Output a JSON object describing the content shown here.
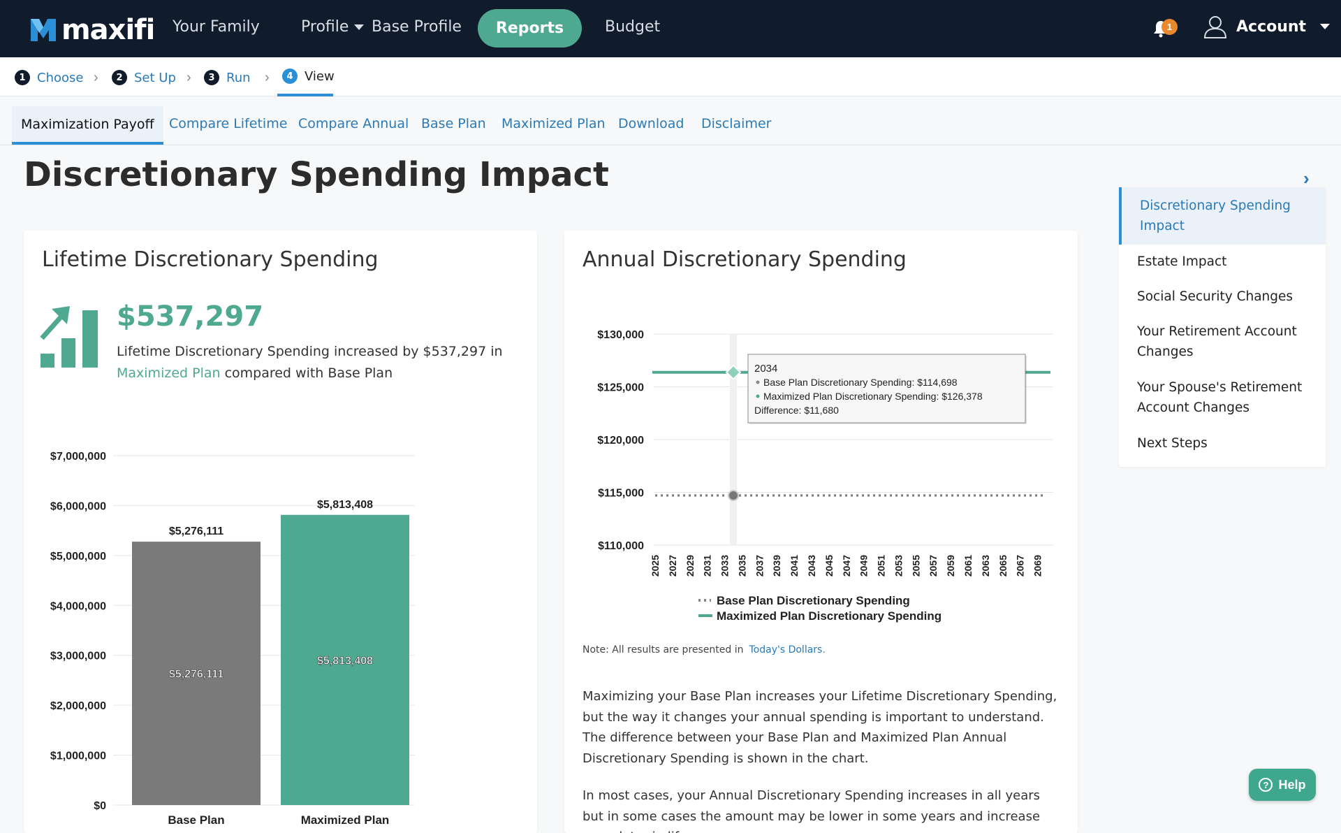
{
  "nav": {
    "logo": "maxifi",
    "items": [
      "Your Family",
      "Profile",
      "Base Profile",
      "Reports",
      "Budget"
    ],
    "notification_count": "1",
    "account_label": "Account"
  },
  "steps": [
    {
      "num": "1",
      "label": "Choose"
    },
    {
      "num": "2",
      "label": "Set Up"
    },
    {
      "num": "3",
      "label": "Run"
    },
    {
      "num": "4",
      "label": "View"
    }
  ],
  "tabs": [
    "Maximization Payoff",
    "Compare Lifetime",
    "Compare Annual",
    "Base Plan",
    "Maximized Plan",
    "Download",
    "Disclaimer"
  ],
  "page_title": "Discretionary Spending Impact",
  "lifetime": {
    "title": "Lifetime Discretionary Spending",
    "amount": "$537,297",
    "text_1": "Lifetime Discretionary Spending increased by $537,297 in",
    "text_maximized": "Maximized Plan",
    "text_2": " compared with ",
    "text_base": "Base Plan"
  },
  "annual": {
    "title": "Annual Discretionary Spending",
    "note": "Note: All results are presented in",
    "note_link": "Today's Dollars.",
    "para_1": "Maximizing your Base Plan increases your Lifetime Discretionary Spending, but the way it changes your annual spending is important to understand. The difference between your Base Plan and Maximized Plan Annual Discretionary Spending is shown in the chart.",
    "para_2": "In most cases, your Annual Discretionary Spending increases in all years but in some cases the amount may be lower in some years and increase more later in life"
  },
  "side_nav": {
    "items": [
      "Discretionary Spending Impact",
      "Estate Impact",
      "Social Security Changes",
      "Your Retirement Account Changes",
      "Your Spouse's Retirement Account Changes",
      "Next Steps"
    ]
  },
  "help_label": "Help",
  "colors": {
    "teal": "#4fa890",
    "gray_bar": "#7a7a7a",
    "navy": "#101b2b",
    "link": "#2a7ab8"
  },
  "chart_data": [
    {
      "type": "bar",
      "categories": [
        "Base Plan",
        "Maximized Plan"
      ],
      "values": [
        5276111,
        5813408
      ],
      "value_labels": [
        "$5,276,111",
        "$5,813,408"
      ],
      "ylim": [
        0,
        7000000
      ],
      "y_ticks": [
        0,
        1000000,
        2000000,
        3000000,
        4000000,
        5000000,
        6000000,
        7000000
      ],
      "y_tick_labels": [
        "$0",
        "$1,000,000",
        "$2,000,000",
        "$3,000,000",
        "$4,000,000",
        "$5,000,000",
        "$6,000,000",
        "$7,000,000"
      ],
      "colors": [
        "#7a7a7a",
        "#4fa890"
      ]
    },
    {
      "type": "line",
      "x_range": [
        2025,
        2070
      ],
      "x_tick_labels": [
        "2025",
        "2027",
        "2029",
        "2031",
        "2033",
        "2035",
        "2037",
        "2039",
        "2041",
        "2043",
        "2045",
        "2047",
        "2049",
        "2051",
        "2053",
        "2055",
        "2057",
        "2059",
        "2061",
        "2063",
        "2065",
        "2067",
        "2069"
      ],
      "ylim": [
        110000,
        130000
      ],
      "y_ticks": [
        110000,
        115000,
        120000,
        125000,
        130000
      ],
      "y_tick_labels": [
        "$110,000",
        "$115,000",
        "$120,000",
        "$125,000",
        "$130,000"
      ],
      "series": [
        {
          "name": "Base Plan Discretionary Spending",
          "value": 114698,
          "style": "dotted",
          "color": "#888888"
        },
        {
          "name": "Maximized Plan Discretionary Spending",
          "value": 126378,
          "style": "solid",
          "color": "#4fa890"
        }
      ],
      "tooltip": {
        "year": "2034",
        "line_1": "Base Plan Discretionary Spending: $114,698",
        "line_2": "Maximized Plan Discretionary Spending: $126,378",
        "line_3": "Difference: $11,680"
      },
      "tooltip_year_value": 2034,
      "legend_position": "bottom"
    }
  ]
}
